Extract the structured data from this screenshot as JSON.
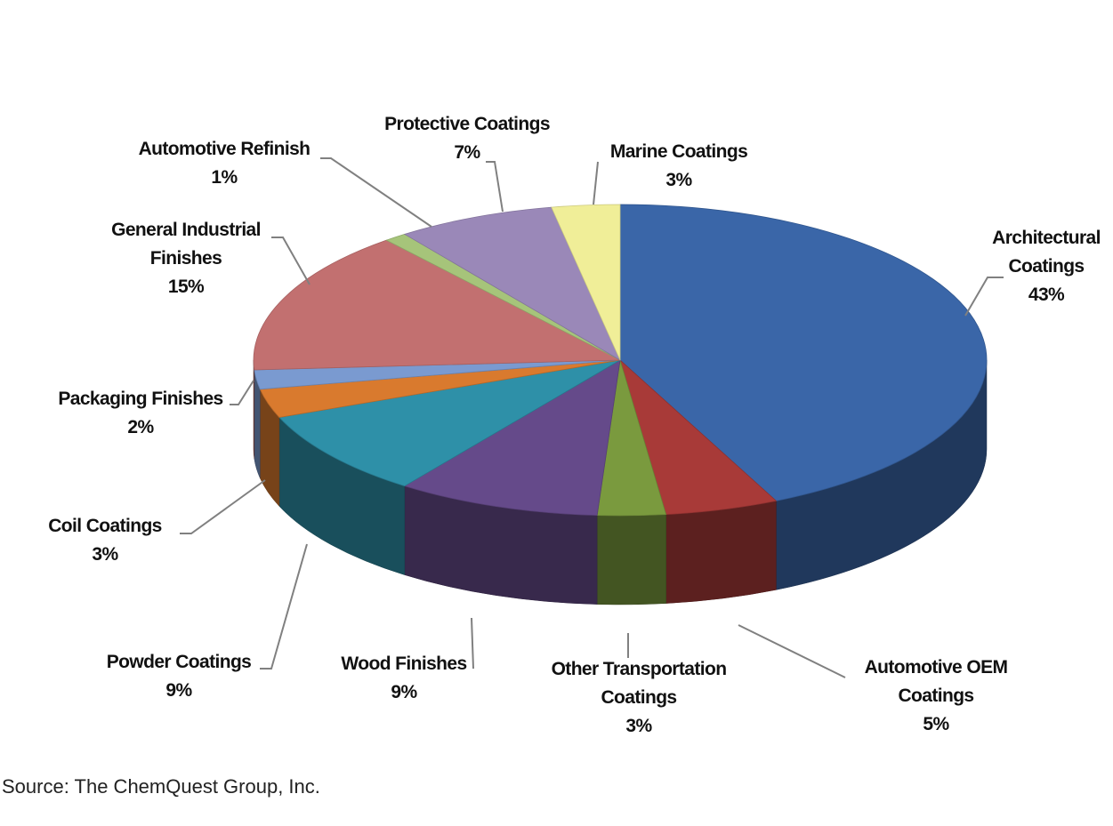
{
  "chart_data": {
    "type": "pie",
    "style": "3d",
    "title": "",
    "slices": [
      {
        "name": "Architectural Coatings",
        "lines": [
          "Architectural",
          "Coatings"
        ],
        "value": 43,
        "label": "43%",
        "color": "#3a66a8"
      },
      {
        "name": "Automotive OEM Coatings",
        "lines": [
          "Automotive OEM",
          "Coatings"
        ],
        "value": 5,
        "label": "5%",
        "color": "#a83a38"
      },
      {
        "name": "Other Transportation Coatings",
        "lines": [
          "Other Transportation",
          "Coatings"
        ],
        "value": 3,
        "label": "3%",
        "color": "#7a9a3e"
      },
      {
        "name": "Wood Finishes",
        "lines": [
          "Wood Finishes"
        ],
        "value": 9,
        "label": "9%",
        "color": "#654a8a"
      },
      {
        "name": "Powder Coatings",
        "lines": [
          "Powder Coatings"
        ],
        "value": 9,
        "label": "9%",
        "color": "#2e90a8"
      },
      {
        "name": "Coil Coatings",
        "lines": [
          "Coil Coatings"
        ],
        "value": 3,
        "label": "3%",
        "color": "#d97a2e"
      },
      {
        "name": "Packaging Finishes",
        "lines": [
          "Packaging Finishes"
        ],
        "value": 2,
        "label": "2%",
        "color": "#7a9ad0"
      },
      {
        "name": "General Industrial Finishes",
        "lines": [
          "General Industrial",
          "Finishes"
        ],
        "value": 15,
        "label": "15%",
        "color": "#c27070"
      },
      {
        "name": "Automotive Refinish",
        "lines": [
          "Automotive Refinish"
        ],
        "value": 1,
        "label": "1%",
        "color": "#a6c47a"
      },
      {
        "name": "Protective Coatings",
        "lines": [
          "Protective Coatings"
        ],
        "value": 7,
        "label": "7%",
        "color": "#9a88b8"
      },
      {
        "name": "Marine Coatings",
        "lines": [
          "Marine Coatings"
        ],
        "value": 3,
        "label": "3%",
        "color": "#f0ee98"
      }
    ],
    "legend": "none"
  },
  "source": "Source: The ChemQuest Group, Inc."
}
